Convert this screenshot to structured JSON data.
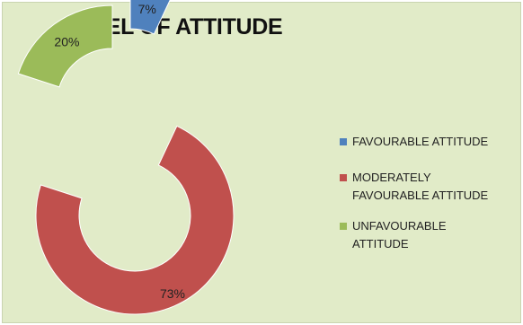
{
  "chart_data": {
    "type": "pie",
    "title": "LEVEL OF ATTITUDE",
    "categories": [
      "FAVOURABLE ATTITUDE",
      "MODERATELY FAVOURABLE ATTITUDE",
      "UNFAVOURABLE ATTITUDE"
    ],
    "values": [
      7,
      73,
      20
    ],
    "labels": [
      "7%",
      "73%",
      "20%"
    ],
    "colors": [
      "#4f81bd",
      "#c0504d",
      "#9bbb59"
    ],
    "donut": true,
    "exploded": true,
    "legend_position": "right"
  },
  "legend": [
    {
      "line1": "FAVOURABLE ATTITUDE",
      "line2": ""
    },
    {
      "line1": "MODERATELY",
      "line2": "FAVOURABLE ATTITUDE"
    },
    {
      "line1": "UNFAVOURABLE",
      "line2": "ATTITUDE"
    }
  ]
}
